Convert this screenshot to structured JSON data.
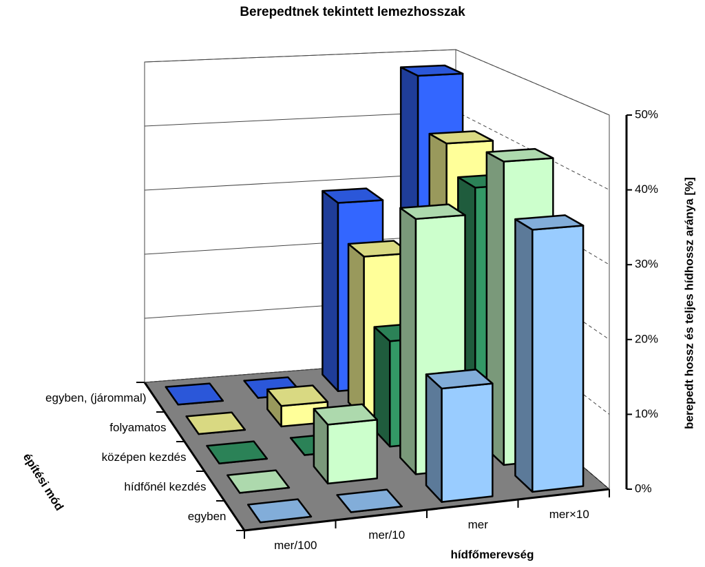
{
  "chart_data": {
    "type": "bar3d",
    "title": "Berepedtnek tekintett lemezhosszak",
    "x_label": "hídfőmerevség",
    "depth_label": "építési mód",
    "y_label": "berepedt hossz és teljes hídhossz aránya [%]",
    "categories": [
      "mer/100",
      "mer/10",
      "mer",
      "mer×10"
    ],
    "series": [
      {
        "name": "egyben, (járommal)",
        "color": "#3366ff",
        "values": [
          0,
          0,
          29,
          48
        ]
      },
      {
        "name": "folyamatos",
        "color": "#ffff99",
        "values": [
          0,
          3,
          24,
          40
        ]
      },
      {
        "name": "középen kezdés",
        "color": "#339966",
        "values": [
          0,
          0,
          15,
          36
        ]
      },
      {
        "name": "hídfőnél kezdés",
        "color": "#ccffcc",
        "values": [
          0,
          8,
          35,
          42
        ]
      },
      {
        "name": "egyben",
        "color": "#99ccff",
        "values": [
          0,
          0,
          15,
          35
        ]
      }
    ],
    "ylim": [
      0,
      50
    ],
    "yticks": [
      {
        "value": 0,
        "label": "0%"
      },
      {
        "value": 10,
        "label": "10%"
      },
      {
        "value": 20,
        "label": "20%"
      },
      {
        "value": 30,
        "label": "30%"
      },
      {
        "value": 40,
        "label": "40%"
      },
      {
        "value": 50,
        "label": "50%"
      }
    ],
    "grid": true
  }
}
